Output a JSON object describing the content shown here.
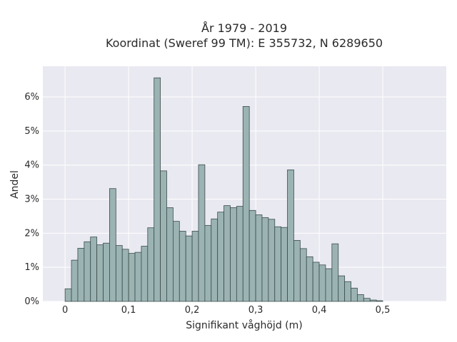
{
  "chart_data": {
    "type": "bar",
    "title_line1": "År 1979 - 2019",
    "title_line2": "Koordinat (Sweref 99 TM): E 355732, N 6289650",
    "xlabel": "Signifikant våghöjd (m)",
    "ylabel": "Andel",
    "xlim": [
      -0.035,
      0.6
    ],
    "ylim": [
      0,
      6.9
    ],
    "bin_start": 0.0,
    "bin_width": 0.01,
    "x_ticks": [
      {
        "value": 0.0,
        "label": "0"
      },
      {
        "value": 0.1,
        "label": "0,1"
      },
      {
        "value": 0.2,
        "label": "0,2"
      },
      {
        "value": 0.3,
        "label": "0,3"
      },
      {
        "value": 0.4,
        "label": "0,4"
      },
      {
        "value": 0.5,
        "label": "0,5"
      }
    ],
    "y_ticks": [
      {
        "value": 0,
        "label": "0%"
      },
      {
        "value": 1,
        "label": "1%"
      },
      {
        "value": 2,
        "label": "2%"
      },
      {
        "value": 3,
        "label": "3%"
      },
      {
        "value": 4,
        "label": "4%"
      },
      {
        "value": 5,
        "label": "5%"
      },
      {
        "value": 6,
        "label": "6%"
      }
    ],
    "values": [
      0.37,
      1.21,
      1.56,
      1.75,
      1.89,
      1.66,
      1.71,
      3.31,
      1.64,
      1.53,
      1.41,
      1.44,
      1.62,
      2.16,
      6.56,
      3.83,
      2.75,
      2.35,
      2.06,
      1.92,
      2.06,
      4.01,
      2.23,
      2.42,
      2.62,
      2.81,
      2.75,
      2.79,
      5.72,
      2.67,
      2.54,
      2.46,
      2.41,
      2.19,
      2.17,
      3.86,
      1.79,
      1.55,
      1.31,
      1.15,
      1.07,
      0.96,
      1.69,
      0.75,
      0.58,
      0.39,
      0.2,
      0.09,
      0.04,
      0.02
    ],
    "grid": true,
    "plot_bg": "#e9e9f1",
    "grid_color": "#ffffff",
    "bar_fill": "#9bb3b3",
    "bar_stroke": "#3c4c4c"
  }
}
